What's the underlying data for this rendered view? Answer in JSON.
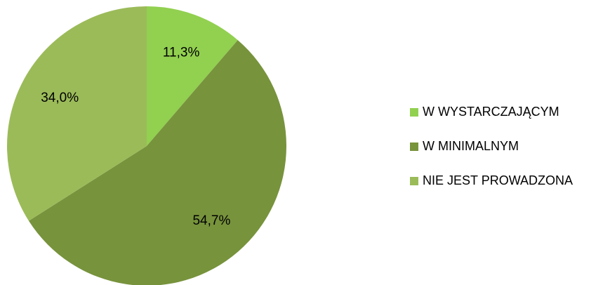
{
  "chart_data": {
    "type": "pie",
    "categories": [
      "W WYSTARCZAJĄCYM",
      "W MINIMALNYM",
      "NIE JEST PROWADZONA"
    ],
    "values": [
      11.3,
      54.7,
      34.0
    ],
    "value_labels": [
      "11,3%",
      "54,7%",
      "34,0%"
    ],
    "colors": [
      "#92d050",
      "#77933c",
      "#9bbb59"
    ],
    "legend": "right"
  }
}
